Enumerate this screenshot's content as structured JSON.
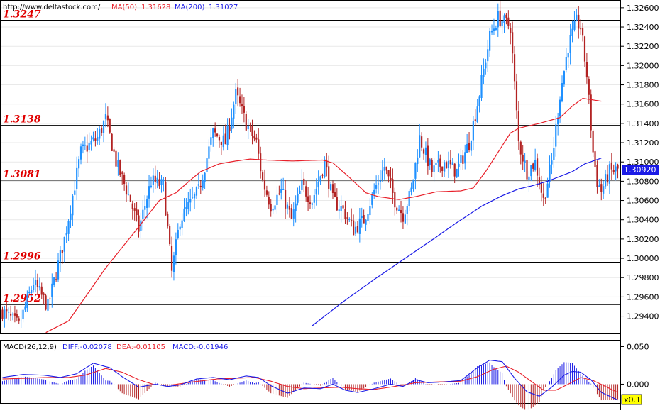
{
  "header": {
    "source_url": "http://www.deltastock.com/",
    "ma50_label": "MA(50)",
    "ma50_value": "1.31628",
    "ma200_label": "MA(200)",
    "ma200_value": "1.31027"
  },
  "macd_header": {
    "name": "MACD(26,12,9)",
    "diff": "DIFF:-0.02078",
    "dea": "DEA:-0.01105",
    "macd": "MACD:-0.01946"
  },
  "scale_badge": "x0.1",
  "last_price_label": "1.30920",
  "colors": {
    "bull": "#1e90ff",
    "bear": "#b22222",
    "ma50": "#e8202a",
    "ma200": "#1a1ae6",
    "level": "#e00000",
    "diff": "#1a1ae6",
    "dea": "#e8202a",
    "grid": "#e9e9e9"
  },
  "chart_data": [
    {
      "type": "candlestick",
      "ylim": [
        1.2922,
        1.3268
      ],
      "yticks": [
        "1.29400",
        "1.29600",
        "1.29800",
        "1.30000",
        "1.30200",
        "1.30400",
        "1.30600",
        "1.30800",
        "1.31000",
        "1.31200",
        "1.31400",
        "1.31600",
        "1.31800",
        "1.32000",
        "1.32200",
        "1.32400",
        "1.32600"
      ],
      "levels": [
        {
          "value": 1.3247,
          "label": "1.3247"
        },
        {
          "value": 1.3138,
          "label": "1.3138"
        },
        {
          "value": 1.3081,
          "label": "1.3081"
        },
        {
          "value": 1.2996,
          "label": "1.2996"
        },
        {
          "value": 1.2952,
          "label": "1.2952"
        }
      ],
      "last_price": 1.3092,
      "close_keypoints": [
        [
          0,
          1.2945
        ],
        [
          8,
          1.293
        ],
        [
          15,
          1.2975
        ],
        [
          22,
          1.295
        ],
        [
          30,
          1.302
        ],
        [
          38,
          1.311
        ],
        [
          46,
          1.3125
        ],
        [
          50,
          1.3145
        ],
        [
          55,
          1.31
        ],
        [
          62,
          1.306
        ],
        [
          66,
          1.303
        ],
        [
          72,
          1.308
        ],
        [
          78,
          1.3075
        ],
        [
          82,
          1.2985
        ],
        [
          86,
          1.304
        ],
        [
          95,
          1.307
        ],
        [
          102,
          1.313
        ],
        [
          108,
          1.312
        ],
        [
          113,
          1.317
        ],
        [
          118,
          1.314
        ],
        [
          123,
          1.312
        ],
        [
          126,
          1.308
        ],
        [
          130,
          1.3055
        ],
        [
          135,
          1.307
        ],
        [
          140,
          1.304
        ],
        [
          145,
          1.3075
        ],
        [
          150,
          1.306
        ],
        [
          156,
          1.31
        ],
        [
          160,
          1.306
        ],
        [
          165,
          1.305
        ],
        [
          170,
          1.303
        ],
        [
          175,
          1.304
        ],
        [
          180,
          1.307
        ],
        [
          185,
          1.3095
        ],
        [
          190,
          1.306
        ],
        [
          194,
          1.3045
        ],
        [
          198,
          1.307
        ],
        [
          202,
          1.3125
        ],
        [
          208,
          1.309
        ],
        [
          214,
          1.31
        ],
        [
          220,
          1.309
        ],
        [
          226,
          1.312
        ],
        [
          230,
          1.316
        ],
        [
          236,
          1.323
        ],
        [
          240,
          1.325
        ],
        [
          246,
          1.324
        ],
        [
          250,
          1.312
        ],
        [
          254,
          1.309
        ],
        [
          258,
          1.31
        ],
        [
          262,
          1.306
        ],
        [
          266,
          1.31
        ],
        [
          270,
          1.317
        ],
        [
          274,
          1.322
        ],
        [
          278,
          1.3245
        ],
        [
          280,
          1.324
        ],
        [
          283,
          1.319
        ],
        [
          286,
          1.311
        ],
        [
          288,
          1.308
        ],
        [
          290,
          1.307
        ],
        [
          294,
          1.309
        ],
        [
          298,
          1.3092
        ]
      ],
      "ma50_keypoints": [
        [
          0,
          1.29
        ],
        [
          32,
          1.2935
        ],
        [
          50,
          1.299
        ],
        [
          65,
          1.303
        ],
        [
          76,
          1.306
        ],
        [
          84,
          1.3068
        ],
        [
          92,
          1.3083
        ],
        [
          96,
          1.309
        ],
        [
          105,
          1.3098
        ],
        [
          113,
          1.3101
        ],
        [
          120,
          1.3103
        ],
        [
          128,
          1.3102
        ],
        [
          140,
          1.3101
        ],
        [
          155,
          1.3102
        ],
        [
          160,
          1.3099
        ],
        [
          168,
          1.3084
        ],
        [
          176,
          1.3068
        ],
        [
          182,
          1.3064
        ],
        [
          192,
          1.3061
        ],
        [
          200,
          1.3064
        ],
        [
          210,
          1.3069
        ],
        [
          222,
          1.307
        ],
        [
          228,
          1.3073
        ],
        [
          234,
          1.309
        ],
        [
          240,
          1.311
        ],
        [
          246,
          1.313
        ],
        [
          250,
          1.3135
        ],
        [
          260,
          1.314
        ],
        [
          270,
          1.3146
        ],
        [
          276,
          1.3158
        ],
        [
          281,
          1.3166
        ],
        [
          290,
          1.3163
        ]
      ],
      "ma200_keypoints": [
        [
          150,
          1.293
        ],
        [
          165,
          1.2955
        ],
        [
          180,
          1.2978
        ],
        [
          195,
          1.3
        ],
        [
          210,
          1.3022
        ],
        [
          220,
          1.3037
        ],
        [
          232,
          1.3054
        ],
        [
          242,
          1.3065
        ],
        [
          250,
          1.3072
        ],
        [
          256,
          1.3075
        ],
        [
          264,
          1.308
        ],
        [
          270,
          1.3085
        ],
        [
          276,
          1.309
        ],
        [
          282,
          1.3098
        ],
        [
          290,
          1.3104
        ]
      ],
      "candle_count": 299
    },
    {
      "type": "macd",
      "ylim": [
        -0.026,
        0.058
      ],
      "yticks": [
        "0.050",
        "0.000"
      ],
      "diff_keypoints": [
        [
          0,
          0.009
        ],
        [
          10,
          0.013
        ],
        [
          20,
          0.012
        ],
        [
          28,
          0.009
        ],
        [
          36,
          0.014
        ],
        [
          44,
          0.028
        ],
        [
          52,
          0.022
        ],
        [
          58,
          0.01
        ],
        [
          66,
          -0.004
        ],
        [
          74,
          0.0
        ],
        [
          80,
          -0.003
        ],
        [
          86,
          -0.001
        ],
        [
          94,
          0.007
        ],
        [
          102,
          0.009
        ],
        [
          110,
          0.006
        ],
        [
          118,
          0.011
        ],
        [
          124,
          0.009
        ],
        [
          130,
          -0.002
        ],
        [
          138,
          -0.012
        ],
        [
          146,
          -0.005
        ],
        [
          154,
          -0.006
        ],
        [
          160,
          0.0
        ],
        [
          166,
          -0.008
        ],
        [
          172,
          -0.011
        ],
        [
          180,
          -0.006
        ],
        [
          188,
          0.0
        ],
        [
          194,
          -0.003
        ],
        [
          200,
          0.006
        ],
        [
          206,
          0.002
        ],
        [
          214,
          0.003
        ],
        [
          222,
          0.005
        ],
        [
          230,
          0.022
        ],
        [
          236,
          0.032
        ],
        [
          242,
          0.03
        ],
        [
          248,
          0.008
        ],
        [
          254,
          -0.01
        ],
        [
          260,
          -0.016
        ],
        [
          266,
          -0.004
        ],
        [
          272,
          0.012
        ],
        [
          276,
          0.017
        ],
        [
          280,
          0.016
        ],
        [
          285,
          0.006
        ],
        [
          290,
          -0.011
        ],
        [
          298,
          -0.021
        ]
      ],
      "dea_keypoints": [
        [
          0,
          0.007
        ],
        [
          12,
          0.008
        ],
        [
          22,
          0.009
        ],
        [
          32,
          0.009
        ],
        [
          40,
          0.012
        ],
        [
          50,
          0.021
        ],
        [
          58,
          0.016
        ],
        [
          66,
          0.006
        ],
        [
          74,
          -0.001
        ],
        [
          82,
          -0.001
        ],
        [
          92,
          0.003
        ],
        [
          104,
          0.007
        ],
        [
          114,
          0.008
        ],
        [
          122,
          0.009
        ],
        [
          130,
          0.004
        ],
        [
          138,
          -0.003
        ],
        [
          146,
          -0.006
        ],
        [
          154,
          -0.005
        ],
        [
          164,
          -0.004
        ],
        [
          172,
          -0.006
        ],
        [
          180,
          -0.007
        ],
        [
          190,
          -0.003
        ],
        [
          200,
          0.002
        ],
        [
          210,
          0.003
        ],
        [
          222,
          0.004
        ],
        [
          230,
          0.01
        ],
        [
          238,
          0.02
        ],
        [
          244,
          0.024
        ],
        [
          250,
          0.016
        ],
        [
          256,
          0.004
        ],
        [
          262,
          -0.008
        ],
        [
          268,
          -0.008
        ],
        [
          274,
          0.0
        ],
        [
          280,
          0.009
        ],
        [
          286,
          0.005
        ],
        [
          292,
          -0.003
        ],
        [
          298,
          -0.011
        ]
      ]
    }
  ]
}
